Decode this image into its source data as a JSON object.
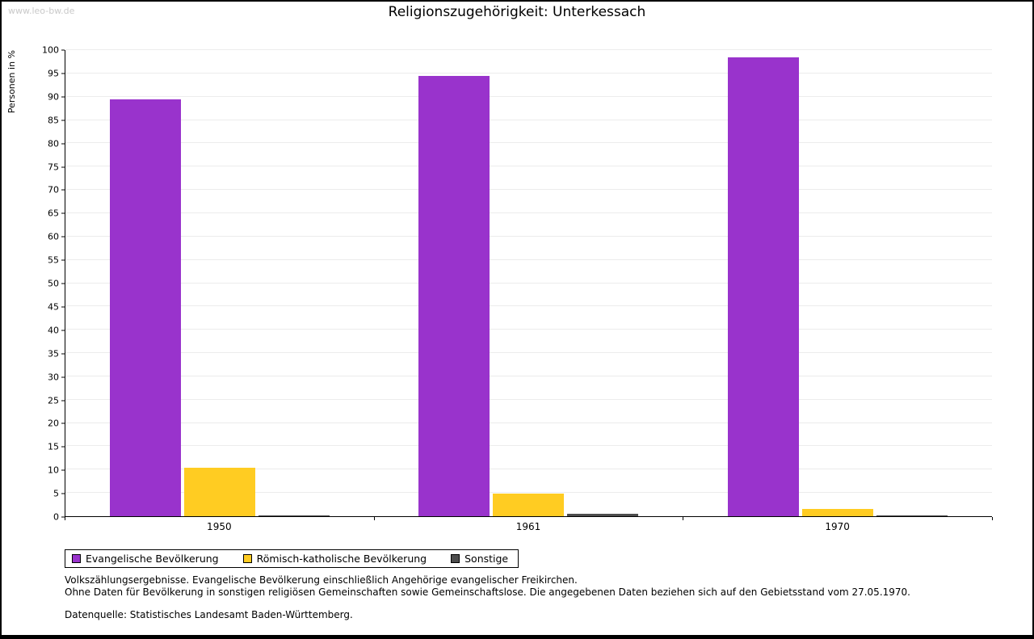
{
  "watermark": "www.leo-bw.de",
  "chart_data": {
    "type": "bar",
    "title": "Religionszugehörigkeit: Unterkessach",
    "ylabel": "Personen in %",
    "xlabel": "",
    "ylim": [
      0,
      100
    ],
    "ytick_step": 5,
    "grid": true,
    "legend_position": "bottom-left",
    "categories": [
      "1950",
      "1961",
      "1970"
    ],
    "series": [
      {
        "name": "Evangelische Bevölkerung",
        "color": "#9933cc",
        "values": [
          89.4,
          94.5,
          98.4
        ]
      },
      {
        "name": "Römisch-katholische Bevölkerung",
        "color": "#ffcc22",
        "values": [
          10.4,
          4.9,
          1.5
        ]
      },
      {
        "name": "Sonstige",
        "color": "#4d4d4d",
        "values": [
          0.2,
          0.6,
          0.1
        ]
      }
    ]
  },
  "footnotes": [
    "Volkszählungsergebnisse. Evangelische Bevölkerung einschließlich Angehörige evangelischer Freikirchen.",
    "Ohne Daten für Bevölkerung in sonstigen religiösen Gemeinschaften sowie Gemeinschaftslose. Die angegebenen Daten beziehen sich auf den Gebietsstand vom 27.05.1970.",
    "Datenquelle: Statistisches Landesamt Baden-Württemberg."
  ]
}
